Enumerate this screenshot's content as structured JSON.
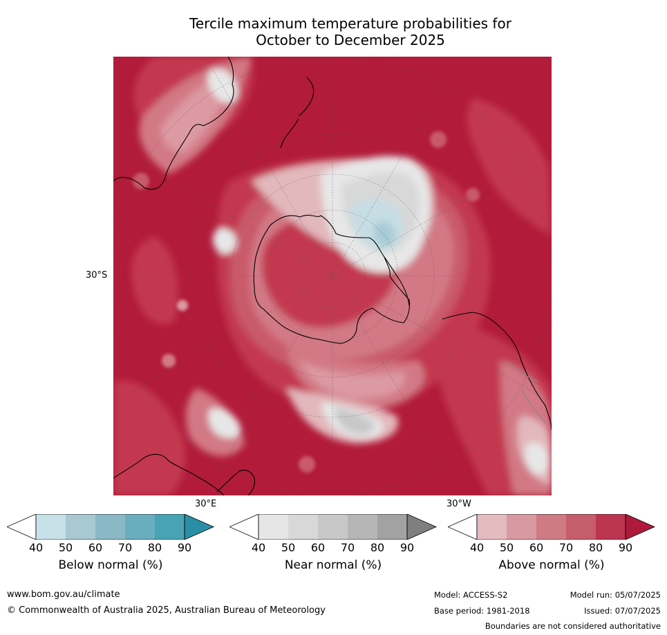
{
  "title": {
    "line1": "Tercile maximum temperature probabilities for",
    "line2": "October to December 2025"
  },
  "map": {
    "projection": "south-polar-stereographic",
    "lat_label": "30°S",
    "lon_labels": {
      "east": "30°E",
      "west": "30°W"
    },
    "dominant_category": "Above normal",
    "colors": {
      "above_90": "#b21b3a",
      "above_80": "#c3394f",
      "above_70": "#c95a6b",
      "above_60": "#d27985",
      "above_50": "#dc9aa2",
      "above_40": "#e2b8bc",
      "near_40": "#e7e7e7",
      "near_50": "#d8d8d8",
      "near_60": "#c8c8c8",
      "below_50": "#c6dde4",
      "below_60": "#a8ccd6",
      "land_outline": "#000000",
      "boundary": "#888888",
      "graticule": "#555555"
    }
  },
  "legends": [
    {
      "label": "Below normal (%)",
      "ticks": [
        "40",
        "50",
        "60",
        "70",
        "80",
        "90"
      ],
      "colors": [
        "#ffffff",
        "#c8e0e7",
        "#a8c9d1",
        "#8bb8c5",
        "#6aadbe",
        "#47a3b5",
        "#2a8fa6"
      ]
    },
    {
      "label": "Near normal (%)",
      "ticks": [
        "40",
        "50",
        "60",
        "70",
        "80",
        "90"
      ],
      "colors": [
        "#ffffff",
        "#e6e6e6",
        "#d8d8d8",
        "#c8c8c8",
        "#b6b6b6",
        "#a2a2a2",
        "#7f7f7f"
      ]
    },
    {
      "label": "Above normal (%)",
      "ticks": [
        "40",
        "50",
        "60",
        "70",
        "80",
        "90"
      ],
      "colors": [
        "#ffffff",
        "#e4bbbf",
        "#d89aa0",
        "#ce7b84",
        "#c65d6a",
        "#bc3550",
        "#b01a3a"
      ]
    }
  ],
  "footer": {
    "website": "www.bom.gov.au/climate",
    "copyright": "© Commonwealth of Australia 2025, Australian Bureau of Meteorology",
    "model": "Model: ACCESS-S2",
    "model_run": "Model run: 05/07/2025",
    "base_period": "Base period: 1981-2018",
    "issued": "Issued: 07/07/2025",
    "disclaimer": "Boundaries are not considered authoritative"
  }
}
